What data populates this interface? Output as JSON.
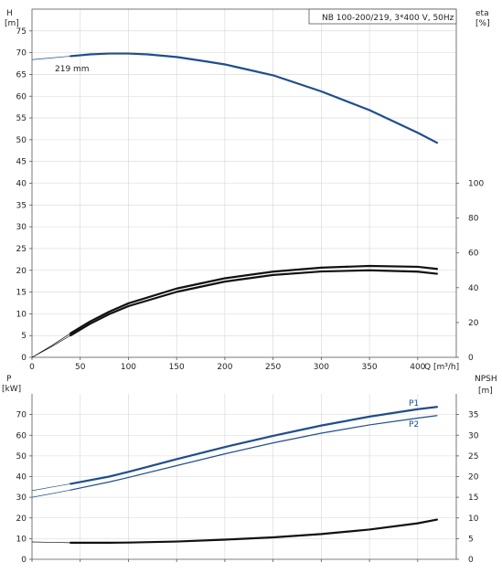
{
  "chart_data": [
    {
      "type": "line",
      "id": "head-efficiency",
      "legend_box": "NB 100-200/219, 3*400 V, 50Hz",
      "left_axis": {
        "label_line1": "H",
        "label_line2": "[m]",
        "range": [
          0,
          80
        ],
        "ticks": [
          0,
          5,
          10,
          15,
          20,
          25,
          30,
          35,
          40,
          45,
          50,
          55,
          60,
          65,
          70,
          75
        ]
      },
      "right_axis": {
        "label_line1": "eta",
        "label_line2": "[%]",
        "range": [
          0,
          200
        ],
        "ticks": [
          0,
          20,
          40,
          60,
          80,
          100
        ]
      },
      "x_axis": {
        "label": "Q [m³/h]",
        "range": [
          0,
          440
        ],
        "ticks": [
          0,
          50,
          100,
          150,
          200,
          250,
          300,
          350,
          400
        ]
      },
      "grid": true,
      "annotation": "219 mm",
      "series": [
        {
          "axis": "left",
          "color": "#1f4e8c",
          "x": [
            40,
            60,
            80,
            100,
            120,
            150,
            180,
            200,
            250,
            300,
            350,
            400,
            420
          ],
          "y": [
            69.2,
            69.6,
            69.8,
            69.8,
            69.6,
            69.0,
            68.0,
            67.3,
            64.8,
            61.1,
            56.8,
            51.6,
            49.3
          ],
          "extension_x": [
            0,
            20,
            40
          ],
          "extension_y": [
            68.4,
            68.8,
            69.2
          ]
        },
        {
          "axis": "right",
          "color": "#111111",
          "x": [
            40,
            60,
            80,
            100,
            150,
            200,
            250,
            300,
            350,
            400,
            420
          ],
          "y": [
            13.8,
            20.5,
            26.2,
            31.0,
            39.5,
            45.4,
            49.2,
            51.5,
            52.5,
            52.0,
            50.8
          ],
          "extension_x": [
            0,
            20,
            40
          ],
          "extension_y": [
            0,
            6.6,
            13.8
          ]
        },
        {
          "axis": "right",
          "color": "#111111",
          "x": [
            40,
            60,
            80,
            100,
            150,
            200,
            250,
            300,
            350,
            400,
            420
          ],
          "y": [
            12.6,
            19.2,
            24.8,
            29.4,
            37.6,
            43.5,
            47.3,
            49.3,
            50.0,
            49.2,
            48.0
          ],
          "extension_x": [
            0,
            20,
            40
          ],
          "extension_y": [
            0,
            6.0,
            12.6
          ]
        }
      ]
    },
    {
      "type": "line",
      "id": "power-npsh",
      "left_axis": {
        "label_line1": "P",
        "label_line2": "[kW]",
        "range": [
          0,
          80
        ],
        "ticks": [
          0,
          10,
          20,
          30,
          40,
          50,
          60,
          70
        ]
      },
      "right_axis": {
        "label_line1": "NPSH",
        "label_line2": "[m]",
        "range": [
          0,
          40
        ],
        "ticks": [
          0,
          5,
          10,
          15,
          20,
          25,
          30,
          35
        ]
      },
      "x_axis": {
        "range": [
          0,
          440
        ]
      },
      "grid": true,
      "series": [
        {
          "name": "P1",
          "axis": "left",
          "color": "#1f4e8c",
          "x": [
            40,
            80,
            100,
            150,
            200,
            250,
            300,
            350,
            400,
            420
          ],
          "y": [
            36.5,
            40.0,
            42.3,
            48.4,
            54.3,
            59.7,
            64.7,
            69.0,
            72.6,
            73.7
          ],
          "extension_x": [
            0,
            20,
            40
          ],
          "extension_y": [
            33.2,
            34.9,
            36.5
          ]
        },
        {
          "name": "P2",
          "axis": "left",
          "color": "#1f4e8c",
          "x": [
            40,
            80,
            100,
            150,
            200,
            250,
            300,
            350,
            400,
            420
          ],
          "y": [
            33.5,
            37.4,
            39.6,
            45.3,
            51.0,
            56.3,
            61.0,
            65.0,
            68.3,
            69.5
          ],
          "extension_x": [
            0,
            20,
            40
          ],
          "extension_y": [
            30.0,
            31.7,
            33.5
          ]
        },
        {
          "axis": "right",
          "color": "#111111",
          "x": [
            40,
            80,
            100,
            150,
            200,
            250,
            300,
            350,
            400,
            420
          ],
          "y": [
            4.0,
            4.0,
            4.05,
            4.3,
            4.75,
            5.3,
            6.1,
            7.2,
            8.7,
            9.6
          ],
          "extension_x": [
            0,
            20,
            40
          ],
          "extension_y": [
            4.2,
            4.1,
            4.0
          ]
        }
      ]
    }
  ]
}
